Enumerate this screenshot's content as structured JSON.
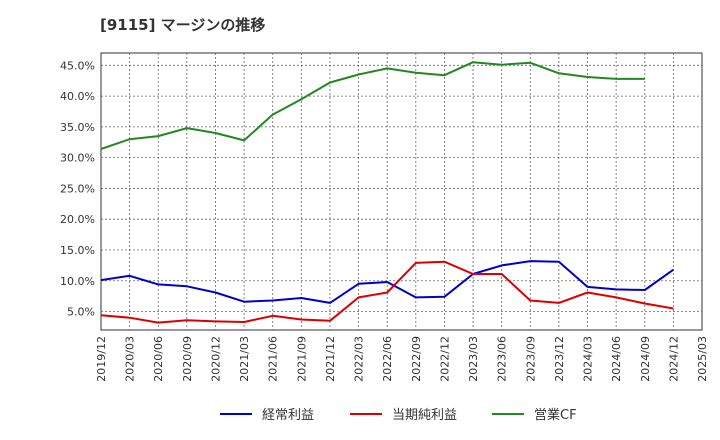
{
  "chart_data": {
    "type": "line",
    "title": "[9115]  マージンの推移",
    "xlabel": "",
    "ylabel": "",
    "x": [
      "2019/12",
      "2020/03",
      "2020/06",
      "2020/09",
      "2020/12",
      "2021/03",
      "2021/06",
      "2021/09",
      "2021/12",
      "2022/03",
      "2022/06",
      "2022/09",
      "2022/12",
      "2023/03",
      "2023/06",
      "2023/09",
      "2023/12",
      "2024/03",
      "2024/06",
      "2024/09",
      "2024/12",
      "2025/03"
    ],
    "y_ticks": [
      "5.0%",
      "10.0%",
      "15.0%",
      "20.0%",
      "25.0%",
      "30.0%",
      "35.0%",
      "40.0%",
      "45.0%"
    ],
    "y_tick_values": [
      5,
      10,
      15,
      20,
      25,
      30,
      35,
      40,
      45
    ],
    "ylim": [
      2.0,
      47.0
    ],
    "grid": true,
    "legend_position": "bottom",
    "series": [
      {
        "name": "経常利益",
        "color": "#0000cc",
        "values": [
          10.1,
          10.8,
          9.4,
          9.1,
          8.1,
          6.6,
          6.8,
          7.2,
          6.4,
          9.5,
          9.8,
          7.3,
          7.4,
          11.1,
          12.5,
          13.2,
          13.1,
          9.0,
          8.6,
          8.5,
          11.8,
          null
        ]
      },
      {
        "name": "当期純利益",
        "color": "#dd0000",
        "values": [
          4.4,
          4.0,
          3.2,
          3.6,
          3.4,
          3.3,
          4.3,
          3.7,
          3.5,
          7.3,
          8.1,
          12.9,
          13.1,
          11.1,
          11.1,
          6.8,
          6.4,
          8.1,
          7.3,
          6.3,
          5.5,
          null
        ]
      },
      {
        "name": "営業CF",
        "color": "#228822",
        "values": [
          31.4,
          33.0,
          33.5,
          34.8,
          34.0,
          32.8,
          37.0,
          39.5,
          42.2,
          43.5,
          44.5,
          43.8,
          43.4,
          45.5,
          45.1,
          45.4,
          43.7,
          43.1,
          42.8,
          42.8,
          null,
          null
        ]
      }
    ]
  }
}
